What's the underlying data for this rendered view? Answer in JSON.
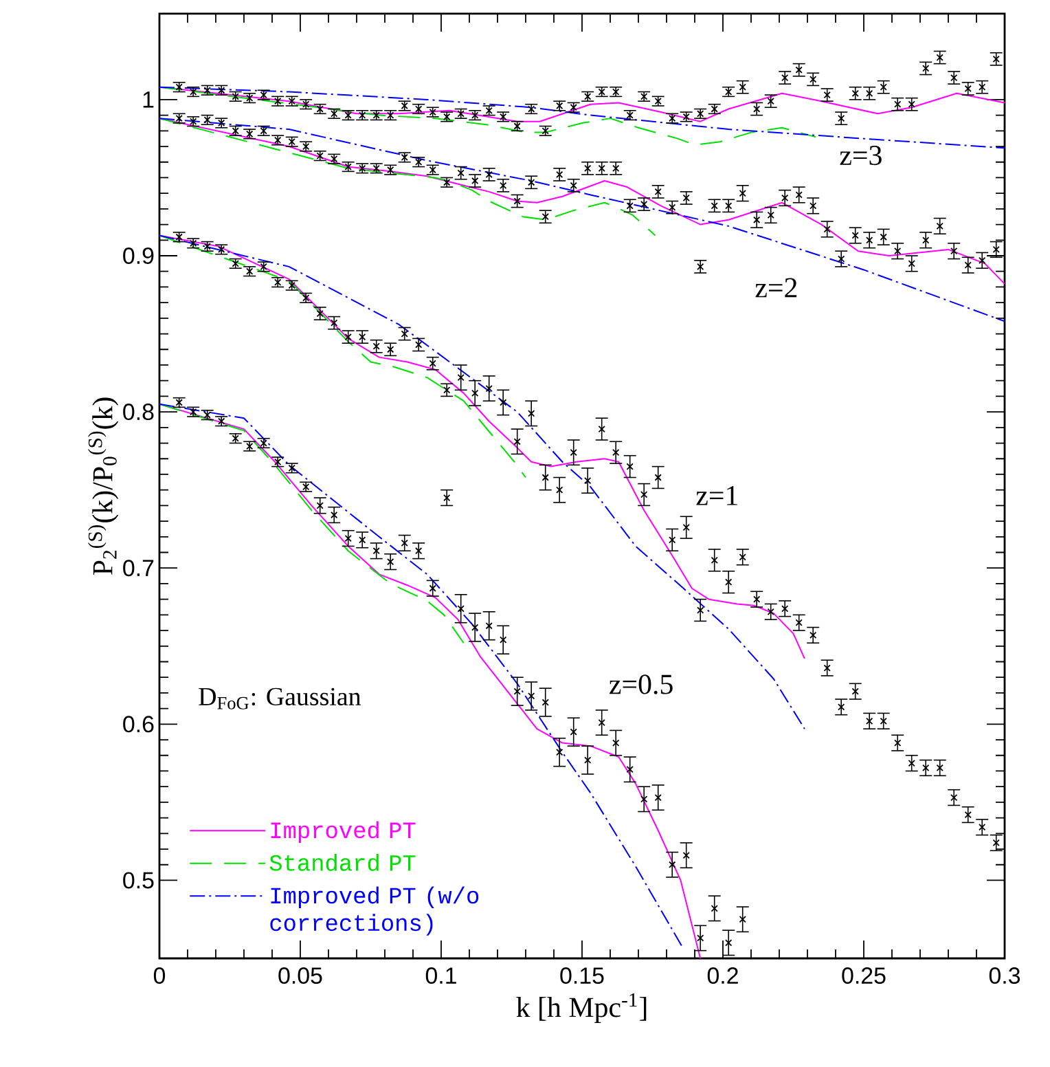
{
  "chart_data": {
    "type": "line",
    "xlabel": "k [h Mpc$^{-1}$]",
    "ylabel": "P$_{2}$$^{(S)}$(k)/P$_{0}$$^{(S)}$(k)",
    "xlim": [
      0,
      0.3
    ],
    "ylim": [
      0.45,
      1.055
    ],
    "xticks": [
      0,
      0.05,
      0.1,
      0.15,
      0.2,
      0.25,
      0.3
    ],
    "yticks": [
      0.5,
      0.6,
      0.7,
      0.8,
      0.9,
      1
    ],
    "legend": "bottom left",
    "annotations": [
      "z=3",
      "z=2",
      "z=1",
      "z=0.5",
      "D$_{FoG}$: Gaussian"
    ],
    "series": [
      {
        "type": "line",
        "name": "Improved PT",
        "color": "#ff00ff",
        "line_style": "solid",
        "x": [
          0,
          0.046,
          0.07,
          0.085,
          0.103,
          0.127,
          0.135,
          0.153,
          0.163,
          0.178,
          0.192,
          0.202,
          0.221,
          0.235,
          0.255,
          0.267,
          0.283,
          0.3
        ],
        "values": [
          1.008,
          0.999,
          0.991,
          0.991,
          0.993,
          0.986,
          0.986,
          0.997,
          0.998,
          0.992,
          0.986,
          0.994,
          1.004,
          0.999,
          0.991,
          0.995,
          1.004,
          0.998
        ]
      },
      {
        "type": "line",
        "name": "Standard PT",
        "color": "#00e000",
        "line_style": "dashed",
        "x": [
          0,
          0.078,
          0.098,
          0.116,
          0.13,
          0.137,
          0.15,
          0.16,
          0.17,
          0.184,
          0.19,
          0.199,
          0.21,
          0.221,
          0.233
        ],
        "values": [
          1.008,
          0.99,
          0.988,
          0.984,
          0.979,
          0.979,
          0.985,
          0.988,
          0.982,
          0.975,
          0.971,
          0.973,
          0.979,
          0.982,
          0.976
        ]
      },
      {
        "type": "line",
        "name": "Improved PT (w/o corrections)",
        "color": "#0000ff",
        "line_style": "dashdot",
        "x": [
          0,
          0.046,
          0.095,
          0.132,
          0.153,
          0.202,
          0.25,
          0.3
        ],
        "values": [
          1.008,
          1.005,
          1.0,
          0.995,
          0.99,
          0.981,
          0.975,
          0.969
        ]
      },
      {
        "type": "line",
        "color": "#ff00ff",
        "line_style": "solid",
        "x": [
          0,
          0.046,
          0.067,
          0.082,
          0.095,
          0.108,
          0.117,
          0.127,
          0.134,
          0.143,
          0.158,
          0.166,
          0.178,
          0.192,
          0.202,
          0.221,
          0.235,
          0.248,
          0.259,
          0.28,
          0.293,
          0.3
        ],
        "values": [
          0.988,
          0.97,
          0.957,
          0.954,
          0.951,
          0.945,
          0.941,
          0.935,
          0.934,
          0.938,
          0.948,
          0.944,
          0.932,
          0.92,
          0.923,
          0.934,
          0.92,
          0.903,
          0.9,
          0.904,
          0.895,
          0.882
        ]
      },
      {
        "type": "line",
        "color": "#00e000",
        "line_style": "dashed",
        "x": [
          0,
          0.067,
          0.082,
          0.098,
          0.104,
          0.111,
          0.117,
          0.129,
          0.137,
          0.147,
          0.158,
          0.161,
          0.168,
          0.176
        ],
        "values": [
          0.988,
          0.956,
          0.953,
          0.95,
          0.947,
          0.942,
          0.935,
          0.925,
          0.923,
          0.929,
          0.934,
          0.932,
          0.926,
          0.913
        ]
      },
      {
        "type": "line",
        "color": "#0000ff",
        "line_style": "dashdot",
        "x": [
          0,
          0.046,
          0.095,
          0.132,
          0.153,
          0.202,
          0.25,
          0.3
        ],
        "values": [
          0.988,
          0.981,
          0.961,
          0.948,
          0.939,
          0.919,
          0.891,
          0.858
        ]
      },
      {
        "type": "line",
        "color": "#ff00ff",
        "line_style": "solid",
        "x": [
          0,
          0.021,
          0.046,
          0.067,
          0.078,
          0.088,
          0.098,
          0.108,
          0.117,
          0.127,
          0.132,
          0.139,
          0.148,
          0.158,
          0.163,
          0.172,
          0.182,
          0.189,
          0.195,
          0.205,
          0.211,
          0.218,
          0.225,
          0.229
        ],
        "values": [
          0.913,
          0.906,
          0.885,
          0.847,
          0.835,
          0.832,
          0.827,
          0.812,
          0.794,
          0.777,
          0.768,
          0.765,
          0.768,
          0.77,
          0.768,
          0.737,
          0.708,
          0.687,
          0.68,
          0.677,
          0.676,
          0.671,
          0.658,
          0.642
        ]
      },
      {
        "type": "line",
        "color": "#00e000",
        "line_style": "dashed",
        "x": [
          0,
          0.046,
          0.067,
          0.075,
          0.083,
          0.095,
          0.108,
          0.114,
          0.126,
          0.13
        ],
        "values": [
          0.913,
          0.884,
          0.845,
          0.832,
          0.829,
          0.822,
          0.807,
          0.794,
          0.768,
          0.758
        ]
      },
      {
        "type": "line",
        "color": "#0000ff",
        "line_style": "dashdot",
        "x": [
          0,
          0.046,
          0.085,
          0.103,
          0.127,
          0.143,
          0.153,
          0.169,
          0.186,
          0.202,
          0.218,
          0.229
        ],
        "values": [
          0.913,
          0.893,
          0.856,
          0.832,
          0.8,
          0.768,
          0.752,
          0.714,
          0.687,
          0.661,
          0.629,
          0.597
        ]
      },
      {
        "type": "line",
        "color": "#ff00ff",
        "line_style": "solid",
        "x": [
          0,
          0.03,
          0.041,
          0.054,
          0.067,
          0.078,
          0.088,
          0.098,
          0.106,
          0.114,
          0.124,
          0.134,
          0.143,
          0.153,
          0.163,
          0.169,
          0.177,
          0.185,
          0.192
        ],
        "values": [
          0.805,
          0.789,
          0.768,
          0.74,
          0.714,
          0.696,
          0.689,
          0.681,
          0.667,
          0.643,
          0.62,
          0.597,
          0.588,
          0.586,
          0.579,
          0.562,
          0.532,
          0.5,
          0.45
        ]
      },
      {
        "type": "line",
        "color": "#00e000",
        "line_style": "dashed",
        "x": [
          0,
          0.03,
          0.041,
          0.054,
          0.067,
          0.082,
          0.095,
          0.101,
          0.108
        ],
        "values": [
          0.805,
          0.788,
          0.766,
          0.737,
          0.711,
          0.69,
          0.679,
          0.67,
          0.652
        ]
      },
      {
        "type": "line",
        "color": "#0000ff",
        "line_style": "dashdot",
        "x": [
          0,
          0.03,
          0.046,
          0.062,
          0.078,
          0.095,
          0.111,
          0.127,
          0.143,
          0.153,
          0.169,
          0.186
        ],
        "values": [
          0.805,
          0.796,
          0.766,
          0.743,
          0.72,
          0.696,
          0.664,
          0.626,
          0.582,
          0.556,
          0.509,
          0.456
        ]
      },
      {
        "type": "scatter",
        "color": "#000000",
        "marker": "cross",
        "x": [
          0.007,
          0.012,
          0.017,
          0.022,
          0.027,
          0.032,
          0.037,
          0.042,
          0.047,
          0.052,
          0.057,
          0.062,
          0.067,
          0.072,
          0.077,
          0.082,
          0.087,
          0.092,
          0.097,
          0.102,
          0.107,
          0.112,
          0.117,
          0.122,
          0.127,
          0.132,
          0.137,
          0.142,
          0.147,
          0.152,
          0.157,
          0.162,
          0.167,
          0.172,
          0.177,
          0.182,
          0.187,
          0.192,
          0.197,
          0.202,
          0.207,
          0.212,
          0.217,
          0.222,
          0.227,
          0.232,
          0.237,
          0.242,
          0.247,
          0.252,
          0.257,
          0.262,
          0.267,
          0.272,
          0.277,
          0.282,
          0.287,
          0.292,
          0.297
        ],
        "values": [
          1.008,
          1.005,
          1.006,
          1.006,
          1.002,
          1.001,
          1.003,
          0.999,
          0.999,
          0.997,
          0.994,
          0.991,
          0.99,
          0.99,
          0.99,
          0.99,
          0.996,
          0.994,
          0.992,
          0.989,
          0.991,
          0.99,
          0.993,
          0.989,
          0.983,
          0.994,
          0.98,
          0.996,
          0.995,
          1.002,
          1.005,
          1.005,
          0.99,
          1.002,
          0.999,
          0.988,
          0.989,
          0.991,
          0.994,
          1.005,
          1.008,
          0.994,
          0.999,
          1.014,
          1.019,
          1.013,
          1.003,
          0.988,
          1.004,
          1.004,
          1.008,
          0.997,
          0.997,
          1.02,
          1.027,
          1.014,
          1.007,
          1.008,
          1.026
        ],
        "errors": [
          0.003,
          0.003,
          0.003,
          0.003,
          0.003,
          0.003,
          0.003,
          0.003,
          0.003,
          0.003,
          0.003,
          0.003,
          0.003,
          0.003,
          0.003,
          0.003,
          0.003,
          0.003,
          0.003,
          0.003,
          0.003,
          0.003,
          0.003,
          0.003,
          0.003,
          0.003,
          0.003,
          0.003,
          0.003,
          0.003,
          0.003,
          0.003,
          0.003,
          0.003,
          0.003,
          0.003,
          0.003,
          0.003,
          0.003,
          0.003,
          0.004,
          0.004,
          0.004,
          0.004,
          0.004,
          0.004,
          0.004,
          0.004,
          0.004,
          0.004,
          0.004,
          0.004,
          0.004,
          0.004,
          0.004,
          0.004,
          0.004,
          0.004,
          0.004
        ]
      },
      {
        "type": "scatter",
        "color": "#000000",
        "marker": "cross",
        "x": [
          0.007,
          0.012,
          0.017,
          0.022,
          0.027,
          0.032,
          0.037,
          0.042,
          0.047,
          0.052,
          0.057,
          0.062,
          0.067,
          0.072,
          0.077,
          0.082,
          0.087,
          0.092,
          0.097,
          0.102,
          0.107,
          0.112,
          0.117,
          0.122,
          0.127,
          0.132,
          0.137,
          0.142,
          0.147,
          0.152,
          0.157,
          0.162,
          0.167,
          0.172,
          0.177,
          0.182,
          0.187,
          0.192,
          0.197,
          0.202,
          0.207,
          0.212,
          0.217,
          0.222,
          0.227,
          0.232,
          0.237,
          0.242,
          0.247,
          0.252,
          0.257,
          0.262,
          0.267,
          0.272,
          0.277,
          0.282,
          0.287,
          0.292,
          0.297
        ],
        "values": [
          0.988,
          0.986,
          0.987,
          0.985,
          0.98,
          0.978,
          0.98,
          0.974,
          0.973,
          0.97,
          0.964,
          0.962,
          0.957,
          0.956,
          0.956,
          0.955,
          0.963,
          0.96,
          0.955,
          0.947,
          0.953,
          0.948,
          0.952,
          0.945,
          0.935,
          0.947,
          0.925,
          0.952,
          0.945,
          0.956,
          0.956,
          0.956,
          0.932,
          0.933,
          0.941,
          0.931,
          0.937,
          0.893,
          0.932,
          0.932,
          0.94,
          0.923,
          0.926,
          0.937,
          0.939,
          0.932,
          0.917,
          0.898,
          0.913,
          0.91,
          0.912,
          0.903,
          0.895,
          0.91,
          0.919,
          0.903,
          0.894,
          0.897,
          0.904
        ],
        "errors": [
          0.003,
          0.003,
          0.003,
          0.003,
          0.003,
          0.003,
          0.003,
          0.003,
          0.003,
          0.003,
          0.003,
          0.003,
          0.003,
          0.003,
          0.003,
          0.003,
          0.003,
          0.003,
          0.003,
          0.003,
          0.004,
          0.004,
          0.004,
          0.004,
          0.004,
          0.004,
          0.004,
          0.004,
          0.004,
          0.004,
          0.004,
          0.004,
          0.004,
          0.004,
          0.004,
          0.004,
          0.004,
          0.004,
          0.004,
          0.004,
          0.005,
          0.005,
          0.005,
          0.005,
          0.005,
          0.005,
          0.005,
          0.005,
          0.005,
          0.005,
          0.005,
          0.005,
          0.005,
          0.005,
          0.005,
          0.005,
          0.005,
          0.005,
          0.005
        ]
      },
      {
        "type": "scatter",
        "color": "#000000",
        "marker": "cross",
        "x": [
          0.007,
          0.012,
          0.017,
          0.022,
          0.027,
          0.032,
          0.037,
          0.042,
          0.047,
          0.052,
          0.057,
          0.062,
          0.067,
          0.072,
          0.077,
          0.082,
          0.087,
          0.092,
          0.097,
          0.102,
          0.107,
          0.112,
          0.117,
          0.122,
          0.127,
          0.132,
          0.137,
          0.142,
          0.147,
          0.152,
          0.157,
          0.162,
          0.167,
          0.172,
          0.177,
          0.182,
          0.187,
          0.192,
          0.197,
          0.202,
          0.207,
          0.212,
          0.217,
          0.222,
          0.227,
          0.232,
          0.237,
          0.242,
          0.247,
          0.252,
          0.257,
          0.262,
          0.267,
          0.272,
          0.277,
          0.282,
          0.287,
          0.292,
          0.297
        ],
        "values": [
          0.912,
          0.908,
          0.906,
          0.904,
          0.895,
          0.89,
          0.893,
          0.883,
          0.881,
          0.873,
          0.863,
          0.857,
          0.848,
          0.848,
          0.842,
          0.84,
          0.85,
          0.843,
          0.831,
          0.814,
          0.822,
          0.812,
          0.815,
          0.806,
          0.781,
          0.799,
          0.758,
          0.75,
          0.774,
          0.756,
          0.789,
          0.774,
          0.765,
          0.747,
          0.758,
          0.718,
          0.726,
          0.673,
          0.705,
          0.691,
          0.707,
          0.68,
          0.672,
          0.674,
          0.665,
          0.657,
          0.636,
          0.611,
          0.621,
          0.602,
          0.602,
          0.588,
          0.575,
          0.572,
          0.572,
          0.553,
          0.542,
          0.534,
          0.524
        ],
        "errors": [
          0.003,
          0.003,
          0.003,
          0.003,
          0.003,
          0.003,
          0.003,
          0.003,
          0.003,
          0.003,
          0.004,
          0.004,
          0.004,
          0.004,
          0.004,
          0.004,
          0.004,
          0.004,
          0.004,
          0.004,
          0.008,
          0.008,
          0.008,
          0.008,
          0.008,
          0.008,
          0.008,
          0.008,
          0.008,
          0.008,
          0.007,
          0.007,
          0.007,
          0.007,
          0.007,
          0.007,
          0.007,
          0.007,
          0.007,
          0.007,
          0.005,
          0.005,
          0.005,
          0.005,
          0.005,
          0.005,
          0.005,
          0.005,
          0.005,
          0.005,
          0.005,
          0.005,
          0.005,
          0.005,
          0.005,
          0.005,
          0.005,
          0.005,
          0.005
        ]
      },
      {
        "type": "scatter",
        "color": "#000000",
        "marker": "cross",
        "x": [
          0.007,
          0.012,
          0.017,
          0.022,
          0.027,
          0.032,
          0.037,
          0.042,
          0.047,
          0.052,
          0.057,
          0.062,
          0.067,
          0.072,
          0.077,
          0.082,
          0.087,
          0.092,
          0.097,
          0.102,
          0.107,
          0.112,
          0.117,
          0.122,
          0.127,
          0.132,
          0.137,
          0.142,
          0.147,
          0.152,
          0.157,
          0.162,
          0.167,
          0.172,
          0.177,
          0.182,
          0.187,
          0.192,
          0.197,
          0.202,
          0.207
        ],
        "values": [
          0.806,
          0.8,
          0.798,
          0.794,
          0.783,
          0.778,
          0.78,
          0.768,
          0.764,
          0.752,
          0.74,
          0.734,
          0.719,
          0.718,
          0.711,
          0.704,
          0.716,
          0.711,
          0.687,
          0.745,
          0.674,
          0.662,
          0.663,
          0.654,
          0.621,
          0.618,
          0.614,
          0.582,
          0.595,
          0.577,
          0.601,
          0.588,
          0.571,
          0.552,
          0.553,
          0.51,
          0.516,
          0.463,
          0.482,
          0.46,
          0.475
        ],
        "errors": [
          0.003,
          0.003,
          0.003,
          0.003,
          0.003,
          0.003,
          0.003,
          0.003,
          0.003,
          0.003,
          0.005,
          0.005,
          0.005,
          0.005,
          0.005,
          0.005,
          0.005,
          0.005,
          0.005,
          0.005,
          0.009,
          0.009,
          0.009,
          0.009,
          0.009,
          0.009,
          0.009,
          0.009,
          0.009,
          0.009,
          0.008,
          0.008,
          0.008,
          0.008,
          0.008,
          0.008,
          0.008,
          0.008,
          0.008,
          0.008,
          0.008
        ]
      }
    ]
  }
}
